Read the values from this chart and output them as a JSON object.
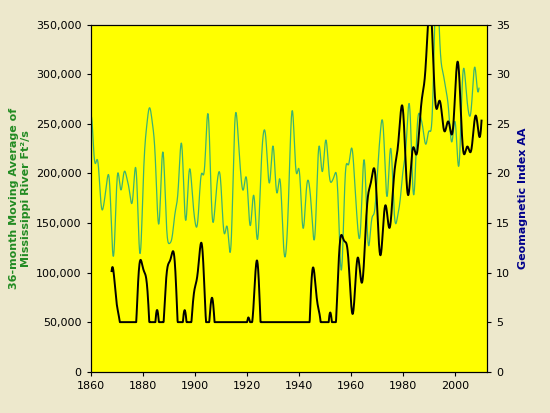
{
  "ylabel_left": "36-month Moving Average of\nMississippi River Ft²/s",
  "ylabel_right": "Geomagnetic Index AA",
  "ylabel_left_color": "#228B22",
  "ylabel_right_color": "#00008B",
  "background_color": "#FFFF00",
  "outer_background": "#EDE8CC",
  "xlim": [
    1860,
    2012
  ],
  "ylim_left": [
    0,
    350000
  ],
  "ylim_right": [
    0,
    35
  ],
  "xticks": [
    1860,
    1880,
    1900,
    1920,
    1940,
    1960,
    1980,
    2000
  ],
  "yticks_left": [
    0,
    50000,
    100000,
    150000,
    200000,
    250000,
    300000,
    350000
  ],
  "yticks_right": [
    0,
    5,
    10,
    15,
    20,
    25,
    30,
    35
  ],
  "streamflow_color": "#3CB371",
  "geomag_color": "#000000",
  "streamflow_linewidth": 0.9,
  "geomag_linewidth": 1.4
}
